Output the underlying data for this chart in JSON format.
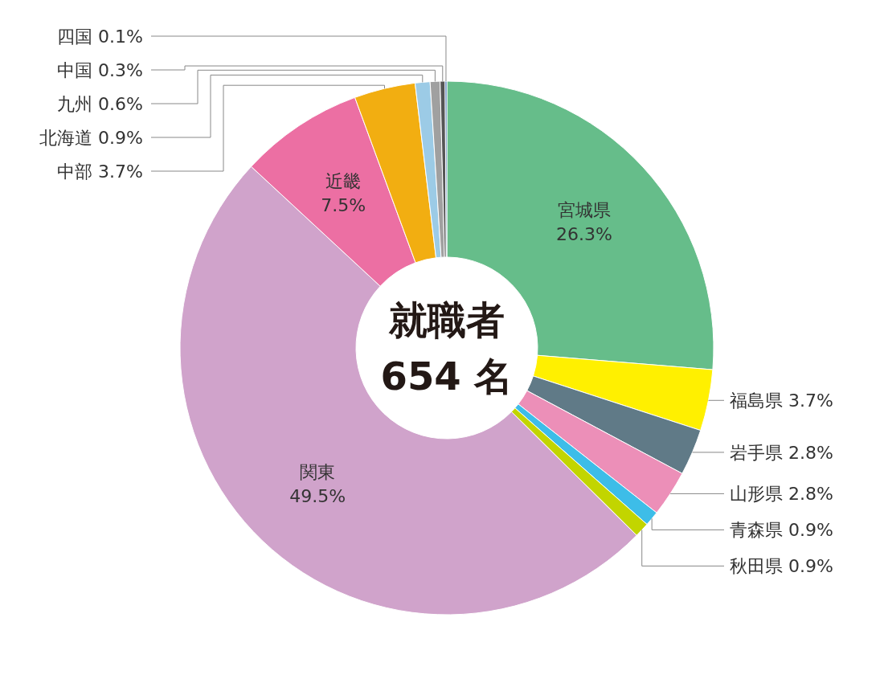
{
  "chart_data": {
    "type": "donut",
    "categories": [
      "宮城県",
      "福島県",
      "岩手県",
      "山形県",
      "青森県",
      "秋田県",
      "関東",
      "近畿",
      "中部",
      "北海道",
      "九州",
      "中国",
      "四国"
    ],
    "values": [
      26.3,
      3.7,
      2.8,
      2.8,
      0.9,
      0.9,
      49.5,
      7.5,
      3.7,
      0.9,
      0.6,
      0.3,
      0.1
    ],
    "value_labels": [
      "26.3%",
      "3.7%",
      "2.8%",
      "2.8%",
      "0.9%",
      "0.9%",
      "49.5%",
      "7.5%",
      "3.7%",
      "0.9%",
      "0.6%",
      "0.3%",
      "0.1%"
    ],
    "colors": [
      "#66bd8a",
      "#fff000",
      "#607a87",
      "#ec8fb8",
      "#3dbde8",
      "#c2d500",
      "#d0a3cb",
      "#ec6fa3",
      "#f2ae11",
      "#9ccbe6",
      "#a0a0a0",
      "#555555",
      "#2a5ca8"
    ],
    "annotations": [
      "就職者",
      "654 名"
    ]
  }
}
